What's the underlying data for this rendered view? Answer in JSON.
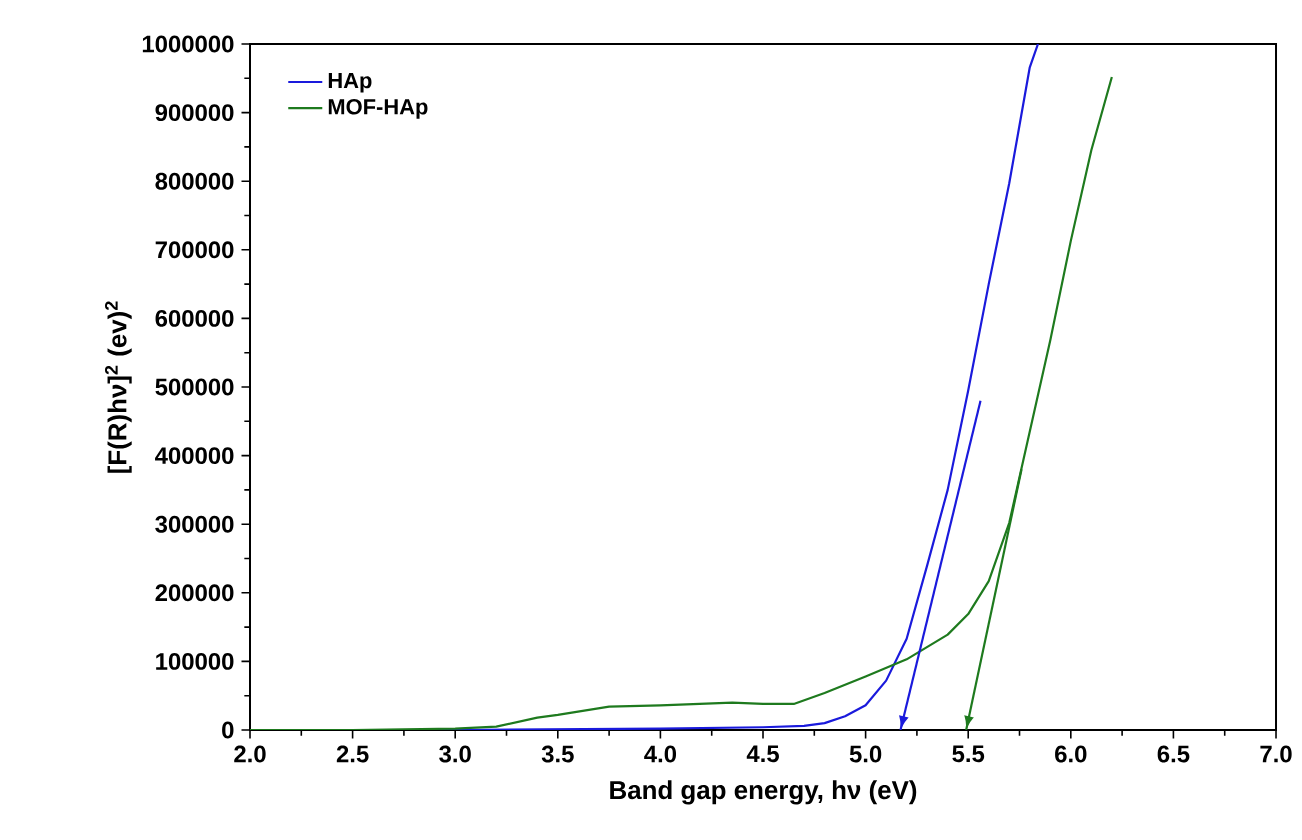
{
  "chart_data": {
    "type": "line",
    "xlabel": "Band gap energy, hν (eV)",
    "ylabel": "[F(R)hν]$^{2}$ (ev)$^{2}$",
    "xlim": [
      2.0,
      7.0
    ],
    "ylim": [
      0,
      1000000
    ],
    "xticks": [
      {
        "value": 2.0,
        "label": "2.0"
      },
      {
        "value": 2.5,
        "label": "2.5"
      },
      {
        "value": 3.0,
        "label": "3.0"
      },
      {
        "value": 3.5,
        "label": "3.5"
      },
      {
        "value": 4.0,
        "label": "4.0"
      },
      {
        "value": 4.5,
        "label": "4.5"
      },
      {
        "value": 5.0,
        "label": "5.0"
      },
      {
        "value": 5.5,
        "label": "5.5"
      },
      {
        "value": 6.0,
        "label": "6.0"
      },
      {
        "value": 6.5,
        "label": "6.5"
      },
      {
        "value": 7.0,
        "label": "7.0"
      }
    ],
    "yticks": [
      0,
      100000,
      200000,
      300000,
      400000,
      500000,
      600000,
      700000,
      800000,
      900000,
      1000000
    ],
    "legend": "top left",
    "marker": "none",
    "line_style": "solid",
    "grid": false,
    "series": [
      {
        "name": "HAp",
        "color": "#1a1adc",
        "x": [
          2.0,
          3.0,
          4.0,
          4.5,
          4.7,
          4.8,
          4.9,
          5.0,
          5.1,
          5.2,
          5.3,
          5.4,
          5.5,
          5.6,
          5.7,
          5.8,
          5.84
        ],
        "values": [
          0,
          0,
          2000,
          4000,
          6000,
          10000,
          20000,
          36000,
          72000,
          133000,
          240000,
          350000,
          495000,
          650000,
          797000,
          966000,
          1000000
        ]
      },
      {
        "name": "MOF-HAp",
        "color": "#1e7a1e",
        "x": [
          2.0,
          2.5,
          3.0,
          3.2,
          3.4,
          3.5,
          3.75,
          4.0,
          4.35,
          4.5,
          4.65,
          4.8,
          5.0,
          5.2,
          5.4,
          5.5,
          5.6,
          5.7,
          5.8,
          5.9,
          6.0,
          6.1,
          6.2
        ],
        "values": [
          0,
          0,
          2000,
          5000,
          18000,
          22000,
          34000,
          36000,
          40000,
          38000,
          38000,
          54000,
          78000,
          103000,
          139000,
          169000,
          217000,
          302000,
          435000,
          568000,
          713000,
          845000,
          952000
        ]
      },
      {
        "type": "line",
        "color": "#1a1adc",
        "x": [
          5.56,
          5.17
        ],
        "values": [
          480000,
          0
        ]
      },
      {
        "type": "line",
        "color": "#1e7a1e",
        "x": [
          5.76,
          5.49
        ],
        "values": [
          380000,
          0
        ]
      }
    ]
  }
}
